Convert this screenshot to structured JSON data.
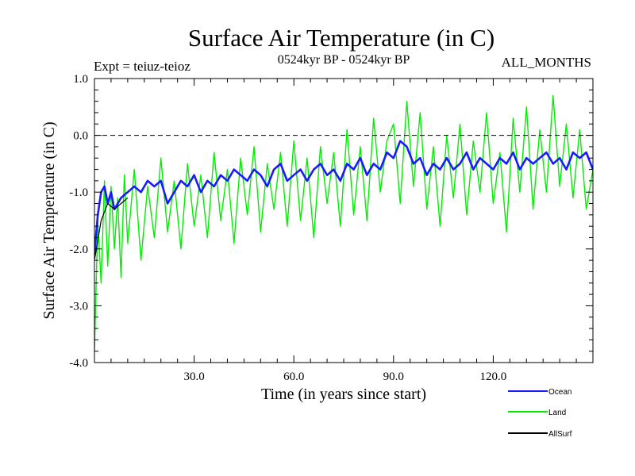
{
  "chart_data": {
    "type": "line",
    "title": "Surface Air Temperature (in C)",
    "subtitle_left": "Expt = teiuz-teioz",
    "subtitle_center": "0524kyr BP - 0524kyr BP",
    "subtitle_right": "ALL_MONTHS",
    "xlabel": "Time (in years since start)",
    "ylabel": "Surface Air Temperature (in C)",
    "xlim": [
      0,
      150
    ],
    "ylim": [
      -4.0,
      1.0
    ],
    "x_ticks": [
      30,
      60,
      90,
      120
    ],
    "x_tick_labels": [
      "30.0",
      "60.0",
      "90.0",
      "120.0"
    ],
    "y_ticks": [
      -4,
      -3,
      -2,
      -1,
      0,
      1
    ],
    "y_tick_labels": [
      "-4.0",
      "-3.0",
      "-2.0",
      "-1.0",
      "0.0",
      "1.0"
    ],
    "reference_line": {
      "y": 0.0,
      "style": "dashed"
    },
    "series": [
      {
        "name": "Land",
        "color": "#00ee00",
        "x": [
          0,
          1,
          2,
          3,
          4,
          5,
          6,
          7,
          8,
          9,
          10,
          12,
          14,
          16,
          18,
          20,
          22,
          24,
          26,
          28,
          30,
          32,
          34,
          36,
          38,
          40,
          42,
          44,
          46,
          48,
          50,
          52,
          54,
          56,
          58,
          60,
          62,
          64,
          66,
          68,
          70,
          72,
          74,
          76,
          78,
          80,
          82,
          84,
          86,
          88,
          90,
          92,
          94,
          96,
          98,
          100,
          102,
          104,
          106,
          108,
          110,
          112,
          114,
          116,
          118,
          120,
          122,
          124,
          126,
          128,
          130,
          132,
          134,
          136,
          138,
          140,
          142,
          144,
          146,
          148,
          150
        ],
        "values": [
          -3.8,
          -1.5,
          -2.6,
          -0.8,
          -2.3,
          -0.9,
          -2.0,
          -1.1,
          -2.5,
          -0.7,
          -1.9,
          -0.6,
          -2.2,
          -0.9,
          -1.8,
          -0.4,
          -1.7,
          -0.8,
          -2.0,
          -0.5,
          -1.6,
          -0.7,
          -1.8,
          -0.3,
          -1.5,
          -0.6,
          -1.9,
          -0.4,
          -1.4,
          -0.2,
          -1.7,
          -0.5,
          -1.3,
          -0.3,
          -1.6,
          -0.1,
          -1.5,
          -0.4,
          -1.8,
          -0.2,
          -1.2,
          -0.3,
          -1.6,
          0.1,
          -1.4,
          -0.2,
          -1.5,
          0.3,
          -1.0,
          -0.1,
          0.2,
          -1.2,
          0.6,
          -0.9,
          0.4,
          -1.3,
          -0.2,
          -1.6,
          0.0,
          -1.1,
          0.2,
          -1.4,
          -0.1,
          -1.0,
          0.4,
          -1.2,
          -0.3,
          -1.7,
          0.3,
          -1.0,
          0.5,
          -1.3,
          0.1,
          -1.0,
          0.7,
          -0.9,
          0.2,
          -1.1,
          0.1,
          -1.3,
          -0.6
        ]
      },
      {
        "name": "Ocean",
        "color": "#1a1aff",
        "x": [
          0,
          1,
          2,
          3,
          4,
          5,
          6,
          8,
          10,
          12,
          14,
          16,
          18,
          20,
          22,
          24,
          26,
          28,
          30,
          32,
          34,
          36,
          38,
          40,
          42,
          44,
          46,
          48,
          50,
          52,
          54,
          56,
          58,
          60,
          62,
          64,
          66,
          68,
          70,
          72,
          74,
          76,
          78,
          80,
          82,
          84,
          86,
          88,
          90,
          92,
          94,
          96,
          98,
          100,
          102,
          104,
          106,
          108,
          110,
          112,
          114,
          116,
          118,
          120,
          122,
          124,
          126,
          128,
          130,
          132,
          134,
          136,
          138,
          140,
          142,
          144,
          146,
          148,
          150
        ],
        "values": [
          -2.1,
          -1.4,
          -1.0,
          -0.9,
          -1.2,
          -1.0,
          -1.3,
          -1.1,
          -1.0,
          -0.9,
          -1.0,
          -0.8,
          -0.9,
          -0.8,
          -1.2,
          -1.0,
          -0.8,
          -0.9,
          -0.7,
          -1.0,
          -0.8,
          -0.9,
          -0.7,
          -0.8,
          -0.6,
          -0.7,
          -0.8,
          -0.6,
          -0.7,
          -0.9,
          -0.6,
          -0.5,
          -0.8,
          -0.7,
          -0.6,
          -0.8,
          -0.6,
          -0.5,
          -0.7,
          -0.6,
          -0.8,
          -0.5,
          -0.6,
          -0.4,
          -0.7,
          -0.5,
          -0.6,
          -0.3,
          -0.4,
          -0.1,
          -0.2,
          -0.5,
          -0.4,
          -0.7,
          -0.5,
          -0.6,
          -0.4,
          -0.6,
          -0.5,
          -0.3,
          -0.6,
          -0.4,
          -0.5,
          -0.6,
          -0.4,
          -0.5,
          -0.3,
          -0.6,
          -0.4,
          -0.5,
          -0.4,
          -0.3,
          -0.5,
          -0.4,
          -0.6,
          -0.3,
          -0.4,
          -0.3,
          -0.6
        ]
      },
      {
        "name": "AllSurf",
        "color": "#000000",
        "x": [
          0,
          2,
          4,
          6,
          8,
          10
        ],
        "values": [
          -2.2,
          -1.5,
          -1.2,
          -1.3,
          -1.2,
          -1.1
        ]
      }
    ],
    "legend": [
      {
        "label": "Ocean",
        "color": "#1a1aff"
      },
      {
        "label": "Land",
        "color": "#00ee00"
      },
      {
        "label": "AllSurf",
        "color": "#000000"
      }
    ],
    "legend_position": "bottom-right"
  }
}
